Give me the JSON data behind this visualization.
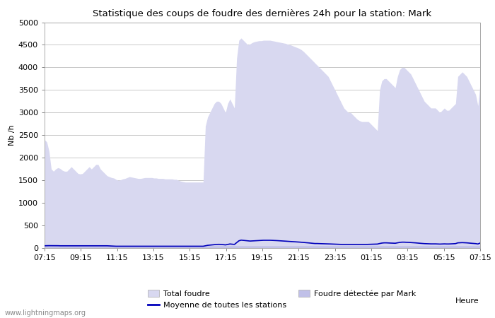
{
  "title": "Statistique des coups de foudre des dernières 24h pour la station: Mark",
  "xlabel": "Heure",
  "ylabel": "Nb /h",
  "ylim": [
    0,
    5000
  ],
  "yticks": [
    0,
    500,
    1000,
    1500,
    2000,
    2500,
    3000,
    3500,
    4000,
    4500,
    5000
  ],
  "xtick_labels": [
    "07:15",
    "09:15",
    "11:15",
    "13:15",
    "15:15",
    "17:15",
    "19:15",
    "21:15",
    "23:15",
    "01:15",
    "03:15",
    "05:15",
    "07:15"
  ],
  "bg_color": "#ffffff",
  "plot_bg_color": "#ffffff",
  "grid_color": "#c8c8c8",
  "total_foudre_color": "#d8d8f0",
  "mark_color": "#c0c0e8",
  "mean_line_color": "#0000bb",
  "watermark": "www.lightningmaps.org",
  "total_foudre": [
    2400,
    2350,
    2150,
    1750,
    1700,
    1750,
    1780,
    1760,
    1720,
    1700,
    1700,
    1750,
    1800,
    1750,
    1700,
    1650,
    1640,
    1650,
    1700,
    1750,
    1800,
    1750,
    1800,
    1850,
    1850,
    1750,
    1700,
    1650,
    1600,
    1580,
    1560,
    1550,
    1520,
    1500,
    1510,
    1530,
    1540,
    1560,
    1580,
    1570,
    1560,
    1550,
    1540,
    1540,
    1550,
    1560,
    1560,
    1560,
    1560,
    1550,
    1550,
    1540,
    1540,
    1540,
    1530,
    1530,
    1530,
    1530,
    1520,
    1520,
    1500,
    1480,
    1470,
    1460,
    1460,
    1460,
    1460,
    1460,
    1460,
    1460,
    1460,
    1460,
    2700,
    2900,
    3000,
    3100,
    3200,
    3250,
    3250,
    3200,
    3100,
    3000,
    3200,
    3300,
    3200,
    3100,
    4200,
    4600,
    4650,
    4600,
    4550,
    4500,
    4520,
    4550,
    4570,
    4580,
    4590,
    4590,
    4600,
    4600,
    4600,
    4600,
    4590,
    4580,
    4570,
    4560,
    4550,
    4540,
    4530,
    4510,
    4500,
    4480,
    4460,
    4440,
    4420,
    4390,
    4350,
    4300,
    4250,
    4200,
    4150,
    4100,
    4050,
    4000,
    3950,
    3900,
    3850,
    3800,
    3700,
    3600,
    3500,
    3400,
    3300,
    3200,
    3100,
    3050,
    3000,
    3000,
    2950,
    2900,
    2850,
    2820,
    2800,
    2800,
    2800,
    2800,
    2750,
    2700,
    2650,
    2600,
    3500,
    3700,
    3750,
    3750,
    3700,
    3650,
    3600,
    3550,
    3800,
    3950,
    4000,
    4000,
    3950,
    3900,
    3850,
    3750,
    3650,
    3550,
    3450,
    3350,
    3250,
    3200,
    3150,
    3100,
    3100,
    3100,
    3050,
    3000,
    3050,
    3100,
    3050,
    3050,
    3100,
    3150,
    3200,
    3800,
    3850,
    3900,
    3850,
    3800,
    3700,
    3600,
    3500,
    3400,
    3150,
    3650
  ],
  "mark_detected": [
    80,
    80,
    75,
    70,
    70,
    70,
    68,
    65,
    65,
    65,
    65,
    65,
    65,
    65,
    65,
    65,
    65,
    65,
    65,
    65,
    65,
    65,
    65,
    65,
    65,
    65,
    65,
    65,
    65,
    60,
    55,
    50,
    50,
    50,
    50,
    50,
    50,
    50,
    50,
    50,
    50,
    50,
    50,
    50,
    50,
    50,
    50,
    50,
    50,
    50,
    50,
    50,
    50,
    50,
    50,
    50,
    50,
    50,
    50,
    50,
    50,
    50,
    50,
    50,
    50,
    50,
    50,
    50,
    50,
    50,
    50,
    50,
    50,
    50,
    50,
    50,
    50,
    50,
    50,
    50,
    50,
    50,
    50,
    50,
    50,
    50,
    50,
    50,
    50,
    50,
    50,
    50,
    50,
    50,
    50,
    50,
    50,
    50,
    50,
    50,
    50,
    50,
    50,
    50,
    50,
    50,
    50,
    50,
    50,
    50,
    50,
    50,
    50,
    50,
    50,
    50,
    50,
    50,
    50,
    50,
    50,
    50,
    50,
    50,
    50,
    50,
    50,
    50,
    50,
    50,
    50,
    50,
    50,
    50,
    50,
    50,
    50,
    50,
    50,
    50,
    50,
    50,
    50,
    50,
    50,
    50,
    50,
    50,
    50,
    50,
    50,
    50,
    50,
    50,
    50,
    50,
    50,
    50,
    50,
    50,
    50,
    50,
    50,
    50,
    50,
    50,
    50,
    50,
    50,
    50,
    50,
    50,
    50,
    50,
    50,
    50,
    50,
    50,
    50,
    50,
    50,
    50,
    50,
    50,
    50,
    50,
    50,
    50,
    50,
    50,
    50,
    50,
    50,
    50,
    50,
    50
  ],
  "mean_line": [
    50,
    52,
    53,
    53,
    52,
    52,
    52,
    50,
    50,
    50,
    50,
    50,
    50,
    50,
    50,
    50,
    50,
    50,
    50,
    50,
    50,
    50,
    50,
    50,
    50,
    50,
    50,
    50,
    50,
    48,
    45,
    42,
    40,
    40,
    40,
    40,
    40,
    40,
    40,
    40,
    40,
    40,
    40,
    40,
    40,
    40,
    40,
    40,
    40,
    40,
    40,
    40,
    40,
    40,
    40,
    40,
    40,
    40,
    40,
    40,
    40,
    40,
    40,
    40,
    40,
    40,
    40,
    40,
    40,
    40,
    40,
    40,
    50,
    60,
    65,
    70,
    75,
    80,
    82,
    80,
    75,
    70,
    80,
    90,
    85,
    80,
    120,
    160,
    175,
    170,
    165,
    160,
    155,
    158,
    162,
    165,
    168,
    170,
    172,
    172,
    172,
    172,
    170,
    168,
    165,
    162,
    158,
    155,
    152,
    148,
    145,
    142,
    138,
    135,
    132,
    128,
    125,
    120,
    115,
    110,
    105,
    100,
    100,
    98,
    96,
    95,
    93,
    92,
    90,
    88,
    86,
    84,
    82,
    80,
    80,
    80,
    80,
    80,
    80,
    80,
    80,
    80,
    80,
    80,
    80,
    82,
    83,
    85,
    86,
    88,
    100,
    110,
    115,
    115,
    112,
    110,
    108,
    106,
    115,
    125,
    130,
    130,
    128,
    125,
    122,
    118,
    115,
    110,
    106,
    102,
    98,
    96,
    94,
    92,
    92,
    92,
    90,
    88,
    90,
    92,
    90,
    90,
    92,
    95,
    98,
    115,
    118,
    120,
    118,
    115,
    110,
    106,
    102,
    98,
    90,
    110
  ]
}
